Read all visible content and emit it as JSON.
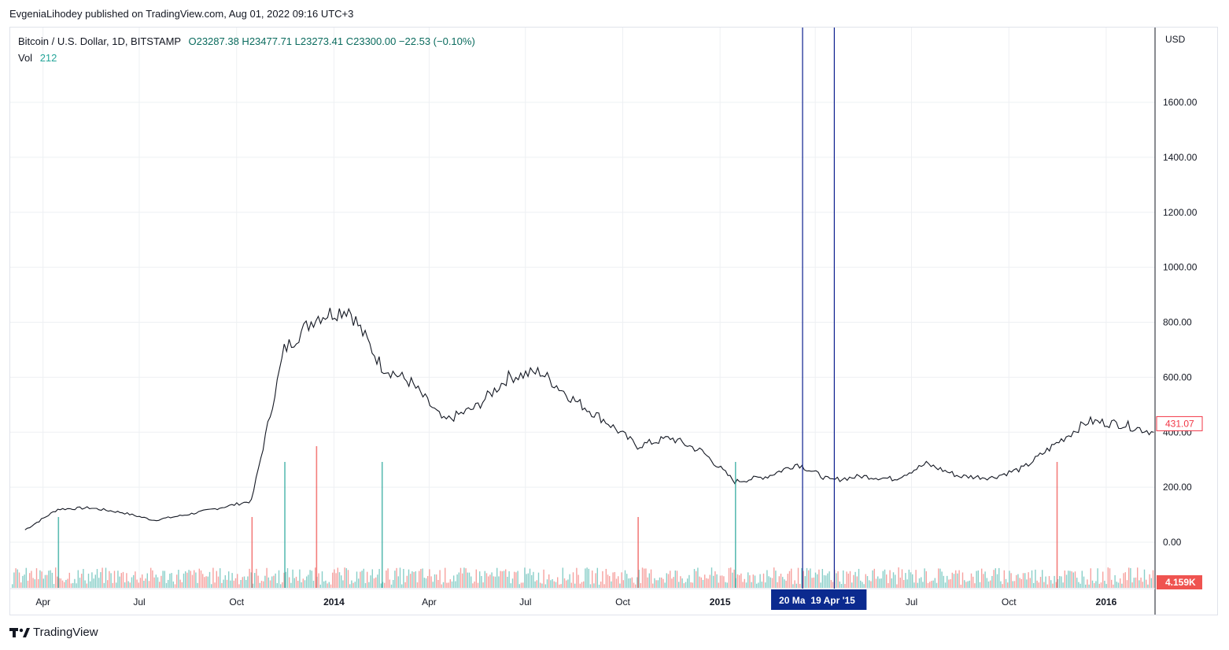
{
  "publisher": "EvgeniaLihodey published on TradingView.com, Aug 01, 2022 09:16 UTC+3",
  "legend": {
    "symbol": "Bitcoin / U.S. Dollar, 1D, BITSTAMP",
    "ohlc": "O23287.38  H23477.71  L23273.41  C23300.00  −22.53 (−0.10%)",
    "vol_label": "Vol",
    "vol_value": "212"
  },
  "footer_brand": "TradingView",
  "colors": {
    "up_volume": "#26a69a",
    "down_volume": "#ef5350",
    "candle": "#131722",
    "marker_line": "#0b1f8f",
    "marker_badge": "#0b2a8f",
    "price_badge": "#f23645",
    "grid": "#eef0f3"
  },
  "chart_data": {
    "type": "line",
    "title": "Bitcoin / U.S. Dollar, 1D, BITSTAMP",
    "currency_label": "USD",
    "y_ticks": [
      "1600.00",
      "1400.00",
      "1200.00",
      "1000.00",
      "800.00",
      "600.00",
      "400.00",
      "200.00",
      "0.00"
    ],
    "ylim": [
      0,
      1700
    ],
    "x_ticks": [
      "Apr",
      "Jul",
      "Oct",
      "2014",
      "Apr",
      "Jul",
      "Oct",
      "2015",
      "Apr",
      "Jul",
      "Oct",
      "2016"
    ],
    "x_tick_year": [
      false,
      false,
      false,
      true,
      false,
      false,
      false,
      true,
      false,
      false,
      false,
      true
    ],
    "series": [
      {
        "name": "Bitcoin / U.S. Dollar",
        "x": [
          "2013-03",
          "2013-04",
          "2013-05",
          "2013-06",
          "2013-07",
          "2013-08",
          "2013-09",
          "2013-10",
          "2013-11",
          "2013-12",
          "2014-01",
          "2014-02",
          "2014-03",
          "2014-04",
          "2014-05",
          "2014-06",
          "2014-07",
          "2014-08",
          "2014-09",
          "2014-10",
          "2014-11",
          "2014-12",
          "2015-01",
          "2015-02",
          "2015-03",
          "2015-04",
          "2015-05",
          "2015-06",
          "2015-07",
          "2015-08",
          "2015-09",
          "2015-10",
          "2015-11",
          "2015-12",
          "2016-01",
          "2016-02"
        ],
        "values": [
          45,
          120,
          125,
          108,
          80,
          100,
          125,
          150,
          700,
          820,
          850,
          640,
          580,
          440,
          490,
          600,
          620,
          520,
          440,
          350,
          380,
          330,
          220,
          240,
          285,
          225,
          240,
          230,
          285,
          240,
          235,
          270,
          360,
          440,
          430,
          400
        ]
      }
    ],
    "volume": {
      "label": "Vol",
      "last_value_label": "4.159K",
      "spikes": [
        {
          "x": "2013-04",
          "value": "medium"
        },
        {
          "x": "2013-10",
          "value": "medium"
        },
        {
          "x": "2013-11",
          "value": "high"
        },
        {
          "x": "2013-12",
          "value": "highest"
        },
        {
          "x": "2014-02",
          "value": "high"
        },
        {
          "x": "2014-10",
          "value": "medium"
        },
        {
          "x": "2015-01",
          "value": "high"
        },
        {
          "x": "2015-11",
          "value": "high"
        }
      ]
    },
    "last_price_label": "431.07",
    "markers": [
      {
        "label": "20 Ma",
        "x": "2015-03-20"
      },
      {
        "label": "19 Apr '15",
        "x": "2015-04-19"
      }
    ],
    "grid": true
  }
}
